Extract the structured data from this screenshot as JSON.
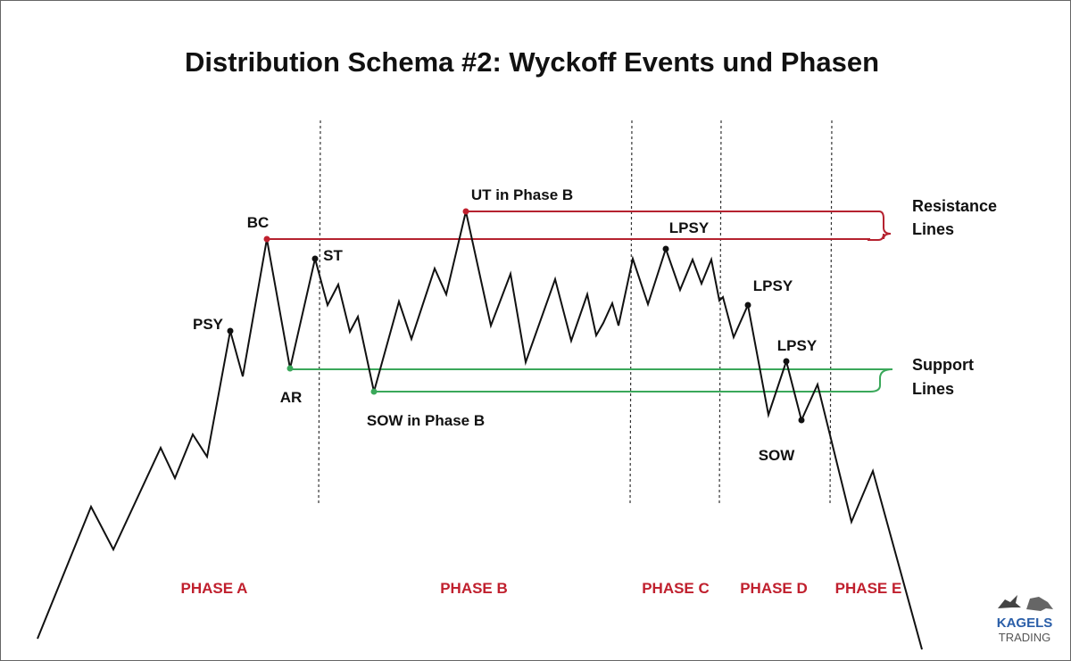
{
  "title": "Distribution Schema #2: Wyckoff Events und Phasen",
  "events": [
    "PSY",
    "BC",
    "AR",
    "ST",
    "UT in Phase B",
    "SOW in Phase B",
    "LPSY",
    "LPSY",
    "LPSY",
    "SOW"
  ],
  "legend": {
    "resistance": [
      "Resistance",
      "Lines"
    ],
    "support": [
      "Support",
      "Lines"
    ]
  },
  "phases": [
    "PHASE A",
    "PHASE B",
    "PHASE C",
    "PHASE D",
    "PHASE E"
  ],
  "logo": {
    "name": "KAGELS",
    "sub": "TRADING"
  }
}
